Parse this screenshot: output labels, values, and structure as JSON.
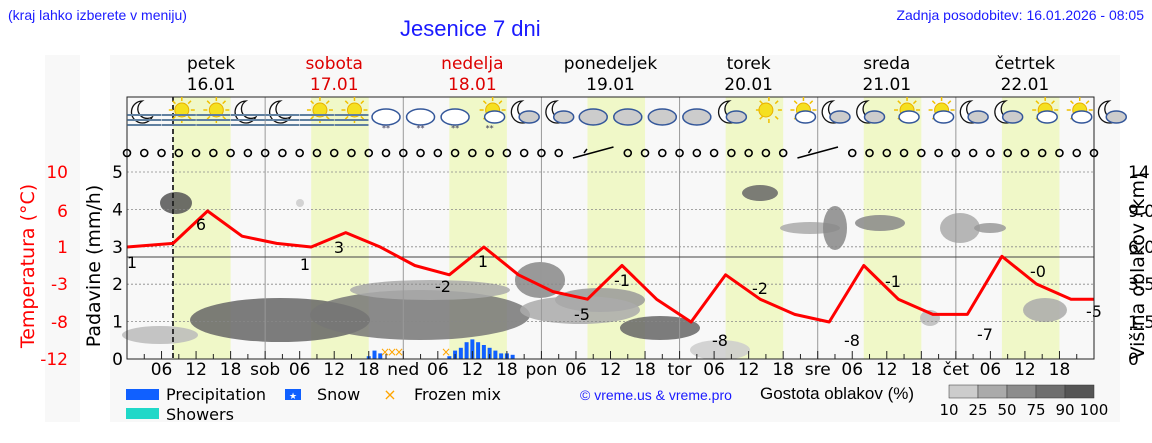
{
  "header": {
    "hint": "(kraj lahko izberete v meniju)",
    "title": "Jesenice 7 dni",
    "updated": "Zadnja posodobitev: 16.01.2026 - 08:05"
  },
  "days": [
    {
      "name": "petek",
      "date": "16.01",
      "weekend": false
    },
    {
      "name": "sobota",
      "date": "17.01",
      "weekend": true
    },
    {
      "name": "nedelja",
      "date": "18.01",
      "weekend": true
    },
    {
      "name": "ponedeljek",
      "date": "19.01",
      "weekend": false
    },
    {
      "name": "torek",
      "date": "20.01",
      "weekend": false
    },
    {
      "name": "sreda",
      "date": "21.01",
      "weekend": false
    },
    {
      "name": "četrtek",
      "date": "22.01",
      "weekend": false
    }
  ],
  "x_ticks": [
    "06",
    "12",
    "18",
    "sob",
    "06",
    "12",
    "18",
    "ned",
    "06",
    "12",
    "18",
    "pon",
    "06",
    "12",
    "18",
    "tor",
    "06",
    "12",
    "18",
    "sre",
    "06",
    "12",
    "18",
    "čet",
    "06",
    "12",
    "18"
  ],
  "legend": {
    "precipitation": "Precipitation",
    "snow": "Snow",
    "frozen_mix": "Frozen mix",
    "showers": "Showers",
    "copyright": "© vreme.us & vreme.pro",
    "cloud_density_title": "Gostota oblakov (%)",
    "cloud_density_ticks": [
      "10",
      "25",
      "50",
      "75",
      "90",
      "100"
    ]
  },
  "colors": {
    "temperature": "#ff0000",
    "precipitation": "#1060ff",
    "showers": "#20d8c8",
    "frozen_mix": "#ffa500",
    "daytime": "#f0f8c8",
    "title_blue": "#1a1aff"
  },
  "chart_data": {
    "type": "line",
    "title": "Jesenice 7 dni",
    "xlabel": "",
    "x_range": [
      "16.01 00:00",
      "22.01 24:00"
    ],
    "axes": {
      "temperature": {
        "label": "Temperatura (°C)",
        "ticks": [
          "10",
          "6",
          "1",
          "-3",
          "-8",
          "-12"
        ],
        "ylim": [
          -12,
          10
        ]
      },
      "precipitation": {
        "label": "Padavine (mm/h)",
        "ticks": [
          "0",
          "1",
          "2",
          "3",
          "4",
          "5"
        ],
        "ylim": [
          0,
          5
        ]
      },
      "cloud_height": {
        "label": "Višina oblakov (km)",
        "ticks": [
          "0",
          "1.5",
          "3.5",
          "6.0",
          "9.0",
          "14"
        ]
      }
    },
    "series": [
      {
        "name": "Temperatura",
        "color": "#ff0000",
        "x_hours": [
          0,
          8,
          14,
          20,
          26,
          32,
          38,
          44,
          50,
          56,
          62,
          68,
          74,
          80,
          86,
          92,
          98,
          104,
          110,
          116,
          122,
          128,
          134,
          140,
          146,
          152,
          158,
          164,
          168
        ],
        "values": [
          1,
          1.5,
          6,
          2.5,
          1.5,
          1,
          3,
          1,
          -1,
          -2,
          1,
          -2,
          -4,
          -5,
          -1,
          -5,
          -8,
          -2,
          -5,
          -7,
          -8,
          -1,
          -5,
          -7,
          -7,
          0,
          -3,
          -5,
          -5
        ]
      },
      {
        "name": "Padavine",
        "color": "#1060ff",
        "x_hours": [
          42,
          43,
          44,
          56,
          57,
          58,
          59,
          60,
          61,
          62,
          63,
          64,
          65,
          66,
          67
        ],
        "values": [
          0.1,
          0.3,
          0.2,
          0.1,
          0.3,
          0.4,
          0.6,
          0.7,
          0.6,
          0.5,
          0.4,
          0.3,
          0.2,
          0.2,
          0.15
        ]
      }
    ],
    "annotations": [
      {
        "label": "1",
        "day": "16.01",
        "type": "min"
      },
      {
        "label": "6",
        "day": "16.01",
        "type": "max"
      },
      {
        "label": "1",
        "day": "17.01",
        "type": "min"
      },
      {
        "label": "3",
        "day": "17.01",
        "type": "max"
      },
      {
        "label": "-2",
        "day": "18.01",
        "type": "min"
      },
      {
        "label": "1",
        "day": "18.01",
        "type": "max"
      },
      {
        "label": "-5",
        "day": "19.01",
        "type": "min"
      },
      {
        "label": "-1",
        "day": "19.01",
        "type": "max"
      },
      {
        "label": "-8",
        "day": "20.01",
        "type": "min"
      },
      {
        "label": "-2",
        "day": "20.01",
        "type": "max"
      },
      {
        "label": "-8",
        "day": "21.01",
        "type": "min"
      },
      {
        "label": "-1",
        "day": "21.01",
        "type": "max"
      },
      {
        "label": "-7",
        "day": "22.01",
        "type": "min"
      },
      {
        "label": "-0",
        "day": "22.01",
        "type": "max"
      },
      {
        "label": "-5",
        "day": "22.01",
        "type": "end"
      }
    ],
    "weather_icons": [
      "moon-fog",
      "sun-fog",
      "sun-fog",
      "moon-fog",
      "moon-fog",
      "sun-fog",
      "sun-fog",
      "cloud-snow",
      "cloud-snow",
      "cloud-snow",
      "sun-cloud-snow",
      "moon-cloud",
      "moon-cloud",
      "cloud",
      "cloud",
      "cloud",
      "cloud",
      "moon-cloud",
      "sun",
      "sun-cloud",
      "moon-cloud",
      "moon-cloud",
      "sun-cloud",
      "sun-cloud",
      "moon-cloud",
      "moon-cloud",
      "sun-cloud",
      "sun-cloud",
      "moon-cloud"
    ],
    "legend_position": "bottom",
    "grid": true
  }
}
